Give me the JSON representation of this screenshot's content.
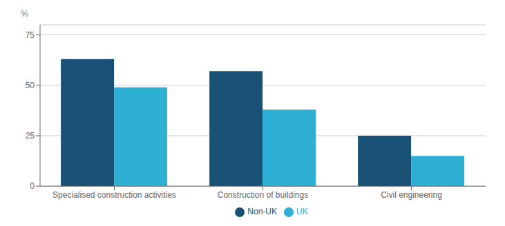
{
  "chart_data": {
    "type": "bar",
    "categories": [
      "Specialised construction activities",
      "Construction of buildings",
      "Civil engineering"
    ],
    "series": [
      {
        "name": "Non-UK",
        "color": "#1a5276",
        "values": [
          63,
          57,
          25
        ]
      },
      {
        "name": "UK",
        "color": "#2eafd4",
        "values": [
          49,
          38,
          15
        ]
      }
    ],
    "ylabel": "%",
    "ylim": [
      0,
      80
    ],
    "yticks": [
      0,
      25,
      50,
      75
    ],
    "grid": true,
    "legend": "bottom"
  }
}
